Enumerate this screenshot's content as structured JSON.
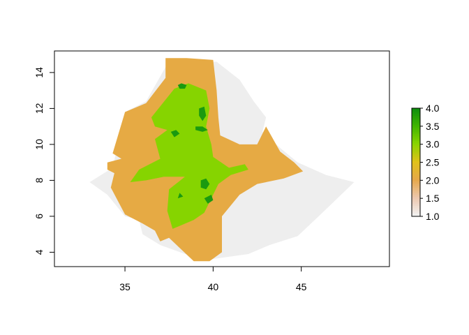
{
  "chart_data": {
    "type": "heatmap",
    "title": "",
    "xlabel": "",
    "ylabel": "",
    "xlim": [
      31,
      50
    ],
    "ylim": [
      3.2,
      15.2
    ],
    "x_ticks": [
      "35",
      "40",
      "45"
    ],
    "y_ticks": [
      "4",
      "6",
      "8",
      "10",
      "12",
      "14"
    ],
    "legend": {
      "placement": "right",
      "range": [
        1.0,
        4.0
      ],
      "ticks": [
        "1.0",
        "1.5",
        "2.0",
        "2.5",
        "3.0",
        "3.5",
        "4.0"
      ],
      "colors": [
        "#f2f2f2",
        "#ecc7ad",
        "#e6a84a",
        "#e0c21a",
        "#88d400",
        "#3fb400",
        "#0c8c10"
      ]
    },
    "value_colors": {
      "1": "#eeeeee",
      "2": "#e6aa44",
      "3": "#86d400",
      "4": "#1a9a10"
    },
    "regions": [
      {
        "value": 1,
        "outline": [
          [
            33.0,
            7.9
          ],
          [
            34.3,
            8.7
          ],
          [
            35.0,
            11.8
          ],
          [
            36.2,
            12.4
          ],
          [
            37.3,
            14.3
          ],
          [
            38.5,
            14.6
          ],
          [
            40.2,
            14.6
          ],
          [
            41.5,
            13.6
          ],
          [
            42.3,
            12.4
          ],
          [
            43.0,
            11.5
          ],
          [
            42.8,
            10.7
          ],
          [
            43.8,
            9.8
          ],
          [
            44.8,
            9.0
          ],
          [
            46.4,
            8.3
          ],
          [
            48.0,
            7.9
          ],
          [
            46.2,
            6.2
          ],
          [
            44.8,
            4.9
          ],
          [
            43.2,
            4.4
          ],
          [
            42.0,
            3.9
          ],
          [
            39.8,
            3.6
          ],
          [
            38.7,
            3.8
          ],
          [
            37.0,
            4.4
          ],
          [
            36.0,
            5.0
          ],
          [
            35.8,
            5.8
          ],
          [
            35.0,
            6.0
          ],
          [
            34.0,
            7.2
          ]
        ]
      },
      {
        "value": 2,
        "outline": [
          [
            34.3,
            9.5
          ],
          [
            35.0,
            11.8
          ],
          [
            36.2,
            12.3
          ],
          [
            37.3,
            13.7
          ],
          [
            37.3,
            14.8
          ],
          [
            38.5,
            14.8
          ],
          [
            40.0,
            14.7
          ],
          [
            40.2,
            13.0
          ],
          [
            40.3,
            11.5
          ],
          [
            40.4,
            10.5
          ],
          [
            41.5,
            10.0
          ],
          [
            42.5,
            10.0
          ],
          [
            43.0,
            11.0
          ],
          [
            43.8,
            9.6
          ],
          [
            44.6,
            9.0
          ],
          [
            45.1,
            8.5
          ],
          [
            44.0,
            8.1
          ],
          [
            42.5,
            7.8
          ],
          [
            41.5,
            7.2
          ],
          [
            40.5,
            6.0
          ],
          [
            40.5,
            4.0
          ],
          [
            39.8,
            3.5
          ],
          [
            38.9,
            3.5
          ],
          [
            37.5,
            4.8
          ],
          [
            37.0,
            4.6
          ],
          [
            36.7,
            5.2
          ],
          [
            36.0,
            5.6
          ],
          [
            35.0,
            6.1
          ],
          [
            34.2,
            7.6
          ],
          [
            34.4,
            8.4
          ],
          [
            34.0,
            8.6
          ],
          [
            34.0,
            9.0
          ],
          [
            34.8,
            9.2
          ]
        ]
      },
      {
        "value": 3,
        "outline": [
          [
            36.5,
            11.5
          ],
          [
            37.8,
            13.1
          ],
          [
            38.6,
            13.4
          ],
          [
            39.6,
            13.0
          ],
          [
            39.8,
            12.0
          ],
          [
            39.6,
            11.0
          ],
          [
            39.9,
            10.0
          ],
          [
            40.0,
            9.3
          ],
          [
            40.9,
            8.7
          ],
          [
            41.8,
            8.9
          ],
          [
            42.0,
            8.6
          ],
          [
            41.0,
            8.3
          ],
          [
            40.3,
            7.8
          ],
          [
            39.5,
            6.2
          ],
          [
            38.9,
            5.8
          ],
          [
            37.7,
            5.3
          ],
          [
            37.4,
            6.3
          ],
          [
            37.5,
            7.5
          ],
          [
            38.4,
            8.2
          ],
          [
            37.2,
            8.2
          ],
          [
            36.2,
            8.0
          ],
          [
            35.3,
            7.9
          ],
          [
            35.8,
            8.6
          ],
          [
            37.0,
            9.2
          ],
          [
            36.7,
            10.3
          ],
          [
            37.4,
            10.8
          ],
          [
            36.7,
            11.0
          ]
        ]
      },
      {
        "value": 4,
        "outline": [
          [
            38.0,
            13.3
          ],
          [
            38.2,
            13.4
          ],
          [
            38.5,
            13.3
          ],
          [
            38.4,
            13.1
          ],
          [
            38.1,
            13.1
          ]
        ]
      },
      {
        "value": 4,
        "outline": [
          [
            39.2,
            12.0
          ],
          [
            39.5,
            12.1
          ],
          [
            39.6,
            11.6
          ],
          [
            39.4,
            11.3
          ],
          [
            39.2,
            11.6
          ]
        ]
      },
      {
        "value": 4,
        "outline": [
          [
            39.0,
            11.0
          ],
          [
            39.4,
            11.0
          ],
          [
            39.7,
            10.8
          ],
          [
            39.4,
            10.7
          ],
          [
            39.0,
            10.8
          ]
        ]
      },
      {
        "value": 4,
        "outline": [
          [
            37.6,
            10.7
          ],
          [
            37.9,
            10.8
          ],
          [
            38.1,
            10.6
          ],
          [
            37.8,
            10.4
          ]
        ]
      },
      {
        "value": 4,
        "outline": [
          [
            39.3,
            8.0
          ],
          [
            39.6,
            8.1
          ],
          [
            39.8,
            7.8
          ],
          [
            39.6,
            7.5
          ],
          [
            39.3,
            7.6
          ]
        ]
      },
      {
        "value": 4,
        "outline": [
          [
            39.5,
            7.0
          ],
          [
            39.9,
            7.2
          ],
          [
            40.0,
            6.9
          ],
          [
            39.7,
            6.7
          ]
        ]
      },
      {
        "value": 4,
        "outline": [
          [
            38.0,
            7.0
          ],
          [
            38.1,
            7.3
          ],
          [
            38.3,
            7.1
          ]
        ]
      }
    ]
  }
}
